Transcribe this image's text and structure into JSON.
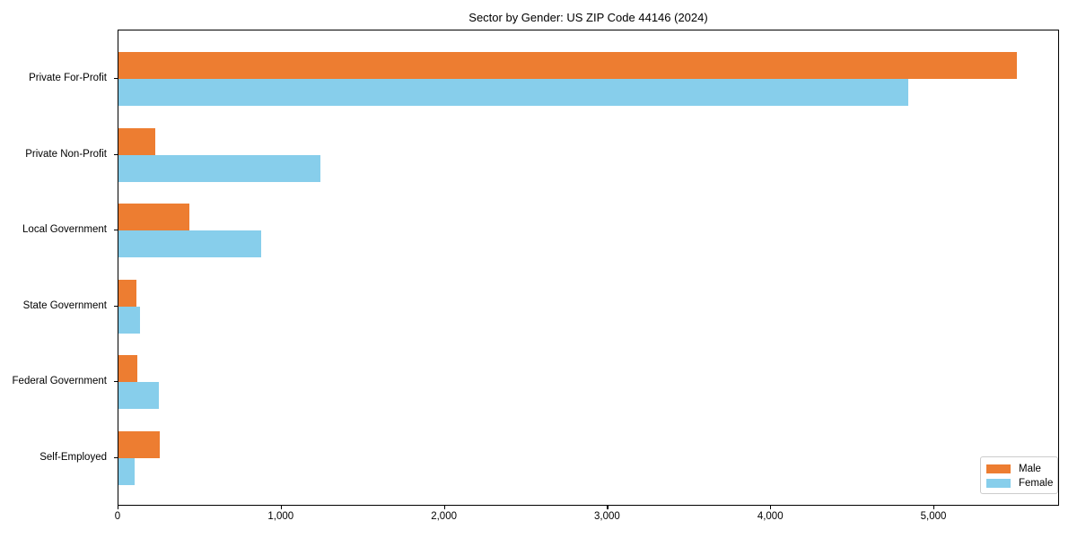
{
  "title": "Sector by Gender: US ZIP Code 44146 (2024)",
  "chart_data": {
    "type": "bar",
    "orientation": "horizontal",
    "title": "Sector by Gender: US ZIP Code 44146 (2024)",
    "categories": [
      "Private For-Profit",
      "Private Non-Profit",
      "Local Government",
      "State Government",
      "Federal Government",
      "Self-Employed"
    ],
    "series": [
      {
        "name": "Male",
        "color": "#ED7D31",
        "values": [
          5515,
          225,
          435,
          110,
          115,
          255
        ]
      },
      {
        "name": "Female",
        "color": "#87CEEB",
        "values": [
          4850,
          1240,
          875,
          130,
          250,
          100
        ]
      }
    ],
    "xlabel": "",
    "ylabel": "",
    "xlim": [
      0,
      5770
    ],
    "x_tick_values": [
      0,
      1000,
      2000,
      3000,
      4000,
      5000
    ],
    "x_tick_labels": [
      "0",
      "1,000",
      "2,000",
      "3,000",
      "4,000",
      "5,000"
    ],
    "grid": false,
    "legend": {
      "position": "lower right",
      "entries": [
        {
          "label": "Male",
          "color": "#ED7D31"
        },
        {
          "label": "Female",
          "color": "#87CEEB"
        }
      ]
    }
  }
}
